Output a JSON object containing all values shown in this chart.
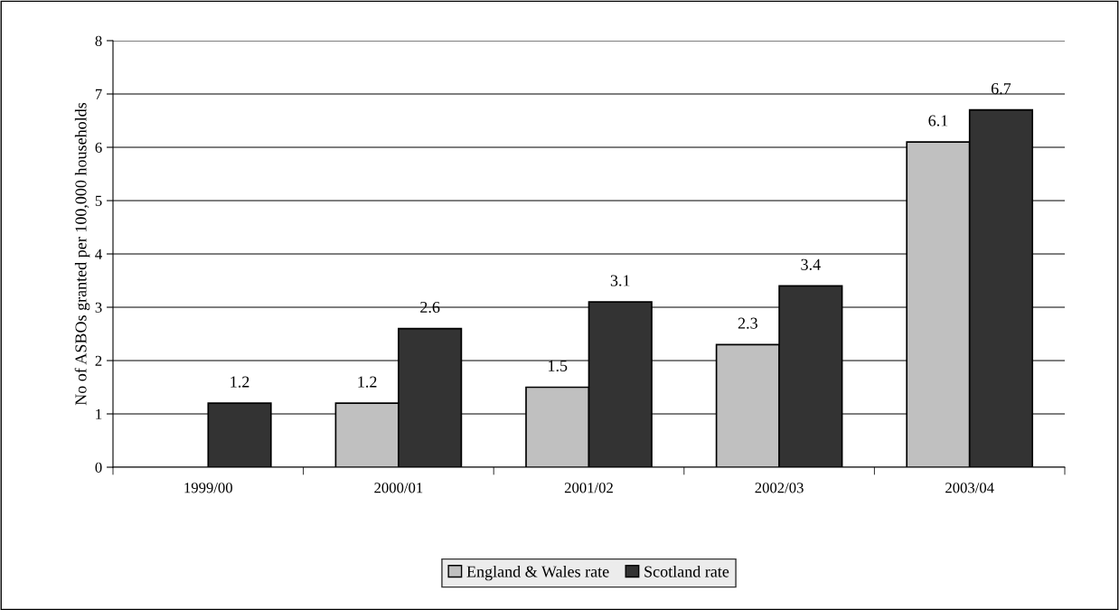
{
  "chart_data": {
    "type": "bar",
    "ylabel": "No of ASBOs granted per 100,000 households",
    "categories": [
      "1999/00",
      "2000/01",
      "2001/02",
      "2002/03",
      "2003/04"
    ],
    "series": [
      {
        "name": "England & Wales rate",
        "color": "#c0c0c0",
        "values": [
          null,
          1.2,
          1.5,
          2.3,
          6.1
        ]
      },
      {
        "name": "Scotland rate",
        "color": "#333333",
        "values": [
          1.2,
          2.6,
          3.1,
          3.4,
          6.7
        ]
      }
    ],
    "ylim": [
      0,
      8
    ],
    "yticks": [
      0,
      1,
      2,
      3,
      4,
      5,
      6,
      7,
      8
    ],
    "grid": "y",
    "legend": "bottom",
    "data_labels": true
  }
}
